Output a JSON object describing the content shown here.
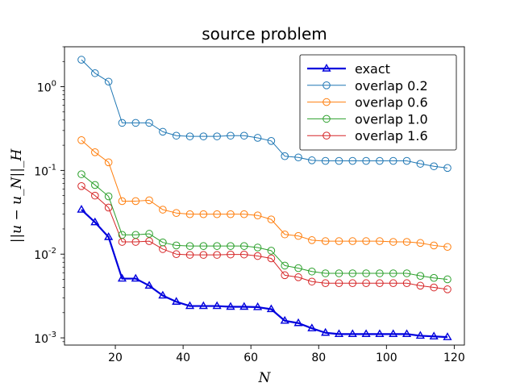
{
  "chart_data": {
    "type": "line",
    "title": "source problem",
    "xlabel": "N",
    "ylabel": "||u − u_N||_H",
    "yscale": "log",
    "xlim": [
      5,
      123
    ],
    "ylim": [
      0.00082,
      3.0
    ],
    "xticks": [
      20,
      40,
      60,
      80,
      100,
      120
    ],
    "yticks": [
      {
        "base": "10",
        "exp": "0",
        "value": 1
      },
      {
        "base": "10",
        "exp": "-1",
        "value": 0.1
      },
      {
        "base": "10",
        "exp": "-2",
        "value": 0.01
      },
      {
        "base": "10",
        "exp": "-3",
        "value": 0.001
      }
    ],
    "legend_position": "top-right",
    "x": [
      10,
      14,
      18,
      22,
      26,
      30,
      34,
      38,
      42,
      46,
      50,
      54,
      58,
      62,
      66,
      70,
      74,
      78,
      82,
      86,
      90,
      94,
      98,
      102,
      106,
      110,
      114,
      118
    ],
    "series": [
      {
        "name": "exact",
        "color": "#0000dd",
        "marker": "triangle",
        "linewidth": 2.2,
        "values": [
          0.034,
          0.024,
          0.016,
          0.0051,
          0.0051,
          0.0042,
          0.0032,
          0.0027,
          0.0024,
          0.0024,
          0.0024,
          0.00235,
          0.00235,
          0.00233,
          0.0022,
          0.0016,
          0.0015,
          0.0013,
          0.00115,
          0.00111,
          0.00111,
          0.00111,
          0.00111,
          0.00111,
          0.00111,
          0.00106,
          0.00104,
          0.00102
        ]
      },
      {
        "name": "overlap 0.2",
        "color": "#1f77b4",
        "marker": "circle",
        "linewidth": 1,
        "values": [
          2.1,
          1.45,
          1.15,
          0.37,
          0.37,
          0.37,
          0.29,
          0.26,
          0.255,
          0.255,
          0.255,
          0.26,
          0.26,
          0.245,
          0.225,
          0.148,
          0.143,
          0.132,
          0.13,
          0.13,
          0.13,
          0.13,
          0.13,
          0.13,
          0.13,
          0.12,
          0.112,
          0.107
        ]
      },
      {
        "name": "overlap 0.6",
        "color": "#ff7f0e",
        "marker": "circle",
        "linewidth": 1,
        "values": [
          0.23,
          0.165,
          0.125,
          0.043,
          0.043,
          0.044,
          0.034,
          0.031,
          0.03,
          0.03,
          0.03,
          0.03,
          0.03,
          0.029,
          0.026,
          0.0172,
          0.0165,
          0.0147,
          0.0143,
          0.0143,
          0.0143,
          0.0143,
          0.0143,
          0.014,
          0.014,
          0.0136,
          0.0127,
          0.0122
        ]
      },
      {
        "name": "overlap 1.0",
        "color": "#2ca02c",
        "marker": "circle",
        "linewidth": 1,
        "values": [
          0.09,
          0.067,
          0.049,
          0.017,
          0.017,
          0.0175,
          0.0138,
          0.0127,
          0.0125,
          0.0125,
          0.0125,
          0.0125,
          0.0125,
          0.012,
          0.011,
          0.0073,
          0.0068,
          0.0062,
          0.0059,
          0.0059,
          0.0059,
          0.0059,
          0.0059,
          0.0059,
          0.0059,
          0.0055,
          0.0052,
          0.005
        ]
      },
      {
        "name": "overlap 1.6",
        "color": "#d62728",
        "marker": "circle",
        "linewidth": 1,
        "values": [
          0.065,
          0.05,
          0.036,
          0.014,
          0.014,
          0.0143,
          0.0115,
          0.01,
          0.0098,
          0.0098,
          0.0098,
          0.0099,
          0.0099,
          0.0095,
          0.0089,
          0.0056,
          0.0053,
          0.0047,
          0.0045,
          0.0045,
          0.0045,
          0.0045,
          0.0045,
          0.0045,
          0.0045,
          0.0042,
          0.004,
          0.0038
        ]
      }
    ]
  }
}
